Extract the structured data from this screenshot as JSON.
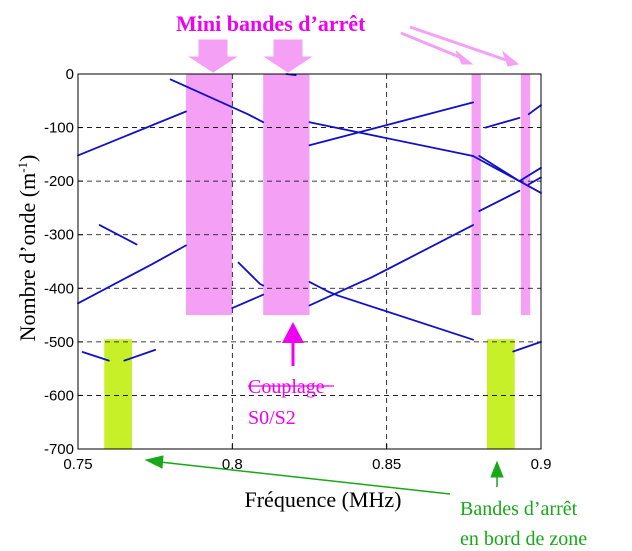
{
  "chart_data": {
    "type": "line",
    "xlabel": "Fréquence (MHz)",
    "ylabel": "Nombre d’onde (m",
    "ylabel_sup": "-1",
    "ylabel_close": ")",
    "xlim": [
      0.75,
      0.9
    ],
    "ylim": [
      -700,
      0
    ],
    "xticks": [
      0.75,
      0.8,
      0.85,
      0.9
    ],
    "xtick_labels": [
      "0.75",
      "0.8",
      "0.85",
      "0.9"
    ],
    "yticks": [
      0,
      -100,
      -200,
      -300,
      -400,
      -500,
      -600,
      -700
    ],
    "ytick_labels": [
      "0",
      "-100",
      "-200",
      "-300",
      "-400",
      "-500",
      "-600",
      "-700"
    ],
    "grid": true,
    "line_color": "#1010c8",
    "stopband_pink": "#f4a0f4",
    "stopband_green": "#c8f028",
    "series": [
      {
        "x": [
          0.75,
          0.785
        ],
        "values": [
          -152,
          -70
        ]
      },
      {
        "x": [
          0.75,
          0.774,
          0.785
        ],
        "values": [
          -428,
          -355,
          -320
        ]
      },
      {
        "x": [
          0.757,
          0.769
        ],
        "values": [
          -282,
          -318
        ]
      },
      {
        "x": [
          0.7515,
          0.76
        ],
        "values": [
          -519,
          -535
        ]
      },
      {
        "x": [
          0.765,
          0.775
        ],
        "values": [
          -535,
          -515
        ]
      },
      {
        "x": [
          0.78,
          0.805,
          0.81
        ],
        "values": [
          -10,
          -75,
          -90
        ]
      },
      {
        "x": [
          0.802,
          0.8055,
          0.809,
          0.81
        ],
        "values": [
          -352,
          -372,
          -392,
          -395
        ]
      },
      {
        "x": [
          0.8,
          0.81
        ],
        "values": [
          -437,
          -412
        ]
      },
      {
        "x": [
          0.8175,
          0.8205
        ],
        "values": [
          0,
          -2
        ]
      },
      {
        "x": [
          0.825,
          0.835,
          0.878
        ],
        "values": [
          -90,
          -102,
          -153
        ]
      },
      {
        "x": [
          0.878,
          0.885,
          0.893
        ],
        "values": [
          -153,
          -175,
          -200
        ]
      },
      {
        "x": [
          0.893,
          0.9
        ],
        "values": [
          -200,
          -222
        ]
      },
      {
        "x": [
          0.825,
          0.878
        ],
        "values": [
          -133,
          -53
        ]
      },
      {
        "x": [
          0.825,
          0.841,
          0.845
        ],
        "values": [
          -432,
          -390,
          -380
        ]
      },
      {
        "x": [
          0.825,
          0.831,
          0.834
        ],
        "values": [
          -388,
          -406,
          -413
        ]
      },
      {
        "x": [
          0.845,
          0.878
        ],
        "values": [
          -380,
          -282
        ]
      },
      {
        "x": [
          0.834,
          0.878
        ],
        "values": [
          -413,
          -496
        ]
      },
      {
        "x": [
          0.88,
          0.893
        ],
        "values": [
          -153,
          -200
        ]
      },
      {
        "x": [
          0.893,
          0.9
        ],
        "values": [
          -200,
          -175
        ]
      },
      {
        "x": [
          0.882,
          0.893
        ],
        "values": [
          -100,
          -82
        ]
      },
      {
        "x": [
          0.896,
          0.9
        ],
        "values": [
          -75,
          -58
        ]
      },
      {
        "x": [
          0.88,
          0.893
        ],
        "values": [
          -256,
          -218
        ]
      },
      {
        "x": [
          0.896,
          0.9
        ],
        "values": [
          -206,
          -193
        ]
      },
      {
        "x": [
          0.891,
          0.9
        ],
        "values": [
          -518,
          -500
        ]
      }
    ],
    "stopbands_pink": [
      {
        "x0": 0.785,
        "x1": 0.8,
        "y0": -450,
        "y1": 0
      },
      {
        "x0": 0.81,
        "x1": 0.825,
        "y0": -450,
        "y1": 0
      },
      {
        "x0": 0.8775,
        "x1": 0.8805,
        "y0": -450,
        "y1": 0
      },
      {
        "x0": 0.8935,
        "x1": 0.8965,
        "y0": -450,
        "y1": 0
      }
    ],
    "stopbands_green": [
      {
        "x0": 0.7585,
        "x1": 0.7675,
        "y0": -700,
        "y1": -495
      },
      {
        "x0": 0.8825,
        "x1": 0.8915,
        "y0": -700,
        "y1": -495
      }
    ],
    "annotations": {
      "mini_title": "Mini bandes d’arrêt",
      "coupling_line1": "Couplage",
      "coupling_line2": "S0/S2",
      "edge_line1": "Bandes d’arrêt",
      "edge_line2": "en bord de zone"
    }
  }
}
